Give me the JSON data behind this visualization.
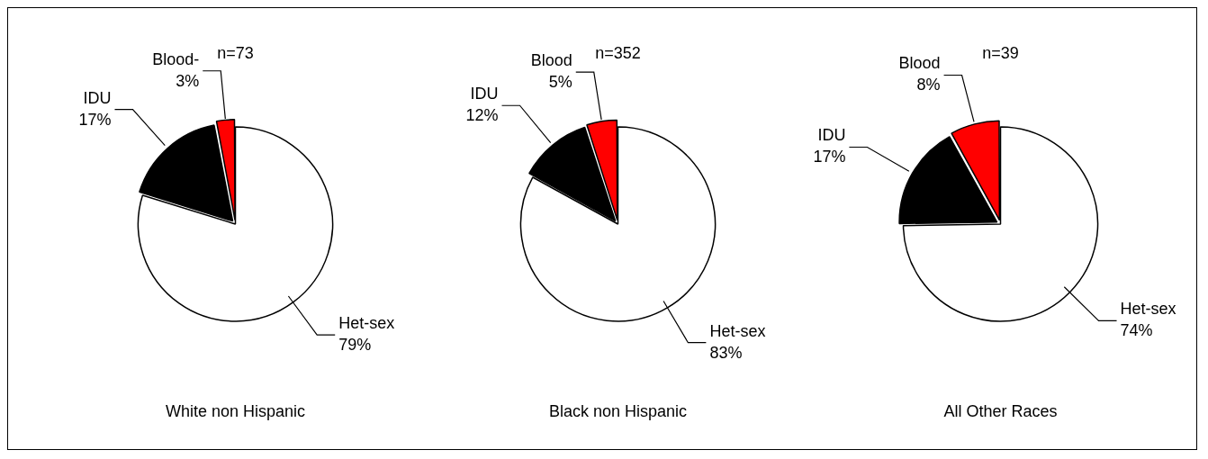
{
  "chart_data": [
    {
      "type": "pie",
      "title": "White non Hispanic",
      "categories": [
        "Het-sex",
        "IDU",
        "Blood-"
      ],
      "values": [
        79,
        17,
        3
      ],
      "value_labels": [
        "79%",
        "17%",
        "3%"
      ],
      "colors": [
        "#ffffff",
        "#000000",
        "#ff0000"
      ],
      "annotations": [
        "n=73"
      ],
      "legend": false
    },
    {
      "type": "pie",
      "title": "Black non Hispanic",
      "categories": [
        "Het-sex",
        "IDU",
        "Blood"
      ],
      "values": [
        83,
        12,
        5
      ],
      "value_labels": [
        "83%",
        "12%",
        "5%"
      ],
      "colors": [
        "#ffffff",
        "#000000",
        "#ff0000"
      ],
      "annotations": [
        "n=352"
      ],
      "legend": false
    },
    {
      "type": "pie",
      "title": "All Other Races",
      "categories": [
        "Het-sex",
        "IDU",
        "Blood"
      ],
      "values": [
        74,
        17,
        8
      ],
      "value_labels": [
        "74%",
        "17%",
        "8%"
      ],
      "colors": [
        "#ffffff",
        "#000000",
        "#ff0000"
      ],
      "annotations": [
        "n=39"
      ],
      "legend": false
    }
  ]
}
